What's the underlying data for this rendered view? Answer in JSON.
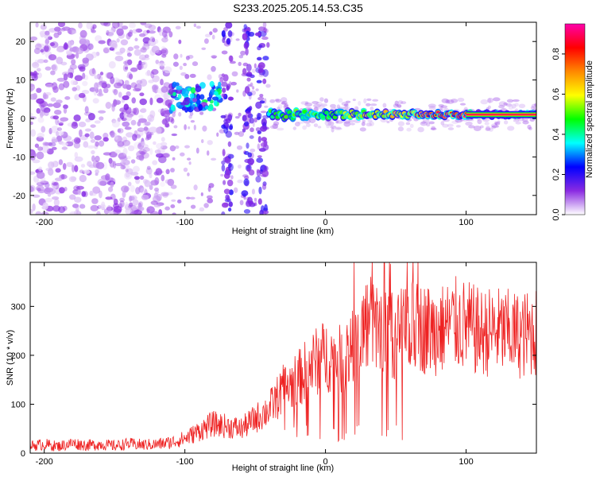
{
  "title": "S233.2025.205.14.53.C35",
  "chart_data": [
    {
      "type": "heatmap",
      "xlabel": "Height of straight line (km)",
      "ylabel": "Frequency (Hz)",
      "xlim": [
        -210,
        150
      ],
      "ylim": [
        -25,
        25
      ],
      "xticks": [
        -200,
        -100,
        0,
        100
      ],
      "yticks": [
        -20,
        -10,
        0,
        10,
        20
      ],
      "colorbar": {
        "label": "Normalized spectral amplitude",
        "range": [
          0,
          0.95
        ],
        "ticks": [
          "0.0",
          "0.2",
          "0.4",
          "0.6",
          "0.8"
        ],
        "tick_values": [
          0.0,
          0.2,
          0.4,
          0.6,
          0.8
        ],
        "colors": [
          "#ffffff",
          "#8a2be2",
          "#0000ff",
          "#00ffff",
          "#00ff00",
          "#ffff00",
          "#ff8800",
          "#ff0000",
          "#ff00aa"
        ]
      },
      "features": {
        "noise_band": {
          "x": [
            -210,
            -110
          ],
          "amplitude": 0.08
        },
        "cluster": {
          "x": [
            -110,
            -75
          ],
          "freq": [
            2,
            9
          ],
          "amplitude": 0.35
        },
        "vertical_streaks_x": [
          -70,
          -55,
          -45
        ],
        "signal_line": {
          "x": [
            -40,
            150
          ],
          "freq": 1,
          "amplitude": 0.9
        }
      },
      "grid": false
    },
    {
      "type": "line",
      "xlabel": "Height of straight line (km)",
      "ylabel": "SNR (10 * v/v)",
      "xlim": [
        -210,
        150
      ],
      "ylim": [
        0,
        390
      ],
      "xticks": [
        -200,
        -100,
        0,
        100
      ],
      "yticks": [
        0,
        100,
        200,
        300
      ],
      "line_color": "#ee2222",
      "x": [
        -210,
        -200,
        -190,
        -180,
        -170,
        -160,
        -150,
        -140,
        -130,
        -120,
        -110,
        -100,
        -90,
        -80,
        -70,
        -60,
        -50,
        -40,
        -30,
        -20,
        -10,
        0,
        10,
        20,
        30,
        40,
        50,
        60,
        70,
        80,
        90,
        100,
        110,
        120,
        130,
        140,
        150
      ],
      "values": [
        15,
        18,
        14,
        20,
        16,
        18,
        15,
        19,
        17,
        18,
        22,
        30,
        45,
        60,
        55,
        50,
        70,
        90,
        130,
        150,
        180,
        200,
        190,
        215,
        270,
        250,
        240,
        260,
        255,
        250,
        265,
        260,
        245,
        250,
        245,
        240,
        250
      ],
      "grid": false
    }
  ]
}
